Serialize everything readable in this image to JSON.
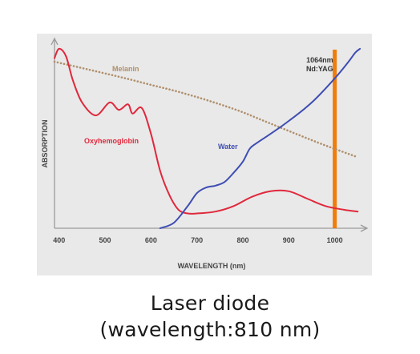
{
  "chart_data": {
    "type": "line",
    "xlabel": "WAVELENGTH (nm)",
    "ylabel": "ABSORPTION",
    "xlim": [
      390,
      1060
    ],
    "ylim": [
      0,
      100
    ],
    "x_ticks": [
      "400",
      "500",
      "600",
      "700",
      "800",
      "900",
      "1000"
    ],
    "grid": false,
    "series": [
      {
        "name": "Melanin",
        "color": "#b08f6b",
        "style": "dotted",
        "x": [
          390,
          450,
          500,
          550,
          600,
          650,
          700,
          750,
          800,
          850,
          900,
          950,
          1000,
          1050
        ],
        "y": [
          90,
          86.6,
          83.7,
          80.7,
          77.5,
          74.4,
          70.9,
          67,
          62.7,
          57.6,
          52.6,
          47.6,
          42.9,
          38.4
        ]
      },
      {
        "name": "Oxyhemoglobin",
        "color": "#e0283c",
        "style": "solid",
        "x": [
          390,
          400,
          415,
          430,
          450,
          480,
          510,
          530,
          550,
          560,
          580,
          600,
          620,
          640,
          660,
          680,
          700,
          740,
          780,
          820,
          860,
          900,
          940,
          980,
          1020,
          1050
        ],
        "y": [
          92,
          97,
          93,
          80,
          68,
          61,
          68,
          64,
          67,
          62,
          65,
          51,
          31,
          18,
          10,
          8,
          8,
          9,
          12,
          17,
          20,
          20,
          16,
          12,
          10,
          9
        ]
      },
      {
        "name": "Water",
        "color": "#3e4db3",
        "style": "solid",
        "x": [
          620,
          650,
          680,
          700,
          720,
          740,
          760,
          780,
          800,
          815,
          830,
          860,
          900,
          950,
          1000,
          1030,
          1045,
          1055
        ],
        "y": [
          0,
          3,
          12,
          19,
          22,
          23,
          25,
          30,
          36,
          43,
          46,
          51,
          58,
          68,
          81,
          90,
          95,
          97
        ]
      }
    ],
    "annotations": [
      {
        "text": "1064nm",
        "x": 1000
      },
      {
        "text": "Nd:YAG",
        "x": 1000
      }
    ],
    "marker_line": {
      "x": 1000,
      "color": "#f07c0a"
    }
  },
  "caption": {
    "line1": "Laser diode",
    "line2": "(wavelength:810 nm)"
  }
}
